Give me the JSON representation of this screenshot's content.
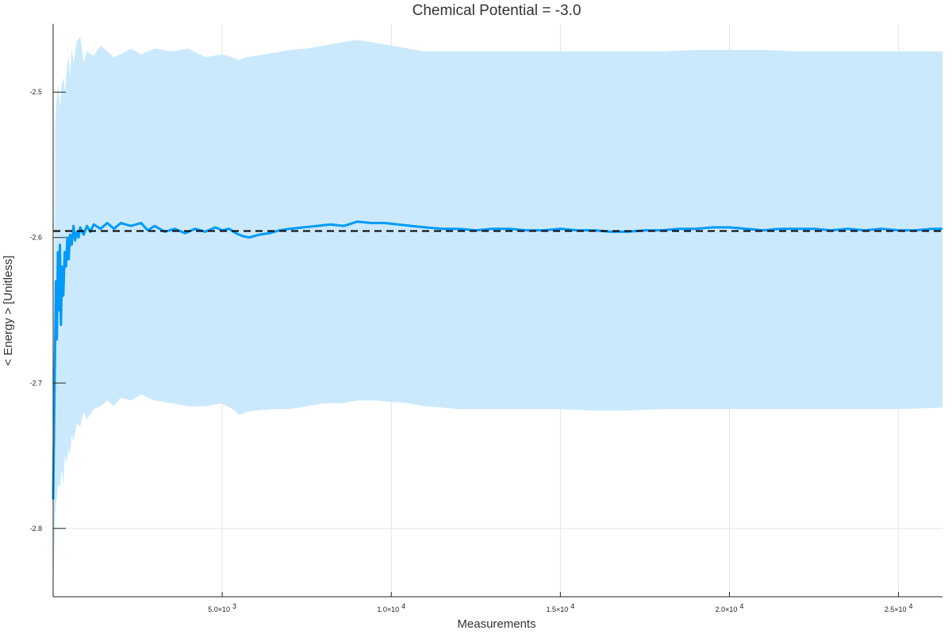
{
  "chart_data": {
    "type": "line",
    "title": "Chemical Potential = -3.0",
    "xlabel": "Measurements",
    "ylabel": "< Energy > [Unitless]",
    "xlim": [
      0,
      26300
    ],
    "ylim": [
      -2.847,
      -2.453
    ],
    "grid": true,
    "legend": "none",
    "x_ticks": [
      {
        "value": 5000,
        "mantissa": "5.0×10",
        "exp": "3"
      },
      {
        "value": 10000,
        "mantissa": "1.0×10",
        "exp": "4"
      },
      {
        "value": 15000,
        "mantissa": "1.5×10",
        "exp": "4"
      },
      {
        "value": 20000,
        "mantissa": "2.0×10",
        "exp": "4"
      },
      {
        "value": 25000,
        "mantissa": "2.5×10",
        "exp": "4"
      }
    ],
    "y_ticks": [
      {
        "value": -2.5,
        "label": "-2.5"
      },
      {
        "value": -2.6,
        "label": "-2.6"
      },
      {
        "value": -2.7,
        "label": "-2.7"
      },
      {
        "value": -2.8,
        "label": "-2.8"
      }
    ],
    "reference_line": {
      "y": -2.5955,
      "style": "dashed",
      "color": "#000000"
    },
    "band": {
      "color": "#cbe9fc",
      "x": [
        0,
        60,
        100,
        150,
        200,
        250,
        300,
        350,
        400,
        450,
        500,
        550,
        600,
        700,
        800,
        900,
        1000,
        1200,
        1400,
        1600,
        1800,
        2000,
        2300,
        2600,
        3000,
        3500,
        4000,
        4500,
        5000,
        5300,
        5500,
        5700,
        6000,
        6500,
        7000,
        7500,
        8000,
        8500,
        9000,
        9500,
        10000,
        10500,
        11000,
        12000,
        13000,
        14000,
        15000,
        16000,
        17000,
        18000,
        19000,
        20000,
        21000,
        22000,
        23000,
        24000,
        25000,
        26300
      ],
      "upper": [
        -2.845,
        -2.52,
        -2.505,
        -2.495,
        -2.51,
        -2.495,
        -2.49,
        -2.5,
        -2.485,
        -2.475,
        -2.49,
        -2.47,
        -2.48,
        -2.465,
        -2.462,
        -2.48,
        -2.472,
        -2.475,
        -2.468,
        -2.472,
        -2.476,
        -2.474,
        -2.47,
        -2.474,
        -2.47,
        -2.472,
        -2.47,
        -2.476,
        -2.474,
        -2.476,
        -2.478,
        -2.476,
        -2.475,
        -2.473,
        -2.471,
        -2.47,
        -2.468,
        -2.466,
        -2.464,
        -2.466,
        -2.468,
        -2.47,
        -2.472,
        -2.472,
        -2.472,
        -2.472,
        -2.472,
        -2.472,
        -2.472,
        -2.472,
        -2.471,
        -2.471,
        -2.471,
        -2.472,
        -2.472,
        -2.472,
        -2.472,
        -2.472
      ],
      "lower": [
        -2.845,
        -2.79,
        -2.78,
        -2.77,
        -2.772,
        -2.76,
        -2.77,
        -2.75,
        -2.755,
        -2.745,
        -2.75,
        -2.735,
        -2.74,
        -2.728,
        -2.73,
        -2.72,
        -2.725,
        -2.718,
        -2.716,
        -2.712,
        -2.716,
        -2.71,
        -2.712,
        -2.708,
        -2.712,
        -2.714,
        -2.716,
        -2.716,
        -2.714,
        -2.718,
        -2.722,
        -2.72,
        -2.719,
        -2.718,
        -2.718,
        -2.716,
        -2.714,
        -2.714,
        -2.712,
        -2.712,
        -2.713,
        -2.714,
        -2.716,
        -2.718,
        -2.718,
        -2.718,
        -2.718,
        -2.719,
        -2.719,
        -2.718,
        -2.718,
        -2.718,
        -2.718,
        -2.718,
        -2.718,
        -2.718,
        -2.718,
        -2.717
      ]
    },
    "series": [
      {
        "color": "#009af9",
        "x": [
          0,
          50,
          80,
          110,
          140,
          170,
          200,
          230,
          260,
          300,
          340,
          380,
          420,
          460,
          500,
          550,
          600,
          650,
          700,
          750,
          800,
          900,
          1000,
          1100,
          1200,
          1400,
          1600,
          1800,
          2000,
          2300,
          2600,
          2800,
          3000,
          3300,
          3600,
          3900,
          4200,
          4500,
          4800,
          5000,
          5200,
          5400,
          5600,
          5800,
          6100,
          6400,
          6700,
          7000,
          7400,
          7800,
          8200,
          8600,
          9000,
          9400,
          9800,
          10200,
          10600,
          11000,
          11500,
          12000,
          12500,
          13000,
          13500,
          14000,
          14500,
          15000,
          15500,
          16000,
          16500,
          17000,
          17500,
          18000,
          18500,
          19000,
          19500,
          20000,
          20500,
          21000,
          21500,
          22000,
          22500,
          23000,
          23500,
          24000,
          24500,
          25000,
          25500,
          26000,
          26300
        ],
        "y": [
          -2.78,
          -2.69,
          -2.63,
          -2.67,
          -2.61,
          -2.65,
          -2.605,
          -2.66,
          -2.62,
          -2.64,
          -2.61,
          -2.62,
          -2.6,
          -2.615,
          -2.598,
          -2.605,
          -2.592,
          -2.602,
          -2.596,
          -2.6,
          -2.593,
          -2.598,
          -2.592,
          -2.596,
          -2.591,
          -2.594,
          -2.59,
          -2.594,
          -2.59,
          -2.592,
          -2.59,
          -2.595,
          -2.592,
          -2.596,
          -2.594,
          -2.597,
          -2.594,
          -2.596,
          -2.593,
          -2.595,
          -2.594,
          -2.597,
          -2.599,
          -2.6,
          -2.598,
          -2.597,
          -2.595,
          -2.594,
          -2.593,
          -2.592,
          -2.591,
          -2.592,
          -2.589,
          -2.59,
          -2.59,
          -2.591,
          -2.592,
          -2.593,
          -2.594,
          -2.594,
          -2.595,
          -2.594,
          -2.594,
          -2.595,
          -2.595,
          -2.594,
          -2.595,
          -2.595,
          -2.596,
          -2.596,
          -2.595,
          -2.595,
          -2.594,
          -2.594,
          -2.593,
          -2.593,
          -2.594,
          -2.595,
          -2.594,
          -2.594,
          -2.594,
          -2.595,
          -2.594,
          -2.595,
          -2.594,
          -2.595,
          -2.595,
          -2.594,
          -2.594
        ]
      }
    ]
  }
}
